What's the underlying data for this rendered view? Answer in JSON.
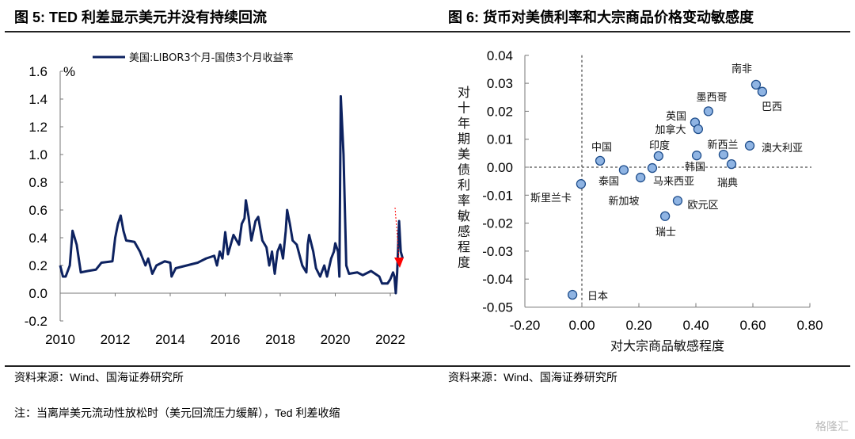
{
  "left": {
    "title": "图 5:  TED 利差显示美元并没有持续回流",
    "source": "资料来源：Wind、国海证券研究所",
    "note": "注：当离岸美元流动性放松时（美元回流压力缓解），Ted 利差收缩"
  },
  "right": {
    "title": "图 6:  货币对美债利率和大宗商品价格变动敏感度",
    "source": "资料来源：Wind、国海证券研究所"
  },
  "watermark": "格隆汇",
  "chart_data": [
    {
      "type": "line",
      "title": "TED 利差显示美元并没有持续回流",
      "ylabel": "%",
      "ylim": [
        -0.2,
        1.6
      ],
      "yticks": [
        "1.6",
        "1.4",
        "1.2",
        "1.0",
        "0.8",
        "0.6",
        "0.4",
        "0.2",
        "0.0",
        "-0.2"
      ],
      "ytick_values": [
        1.6,
        1.4,
        1.2,
        1.0,
        0.8,
        0.6,
        0.4,
        0.2,
        0.0,
        -0.2
      ],
      "xticks": [
        "2010",
        "2012",
        "2014",
        "2016",
        "2018",
        "2020",
        "2022"
      ],
      "xtick_values": [
        2010,
        2012,
        2014,
        2016,
        2018,
        2020,
        2022
      ],
      "legend": "美国:LIBOR3个月-国债3个月收益率",
      "series_color": "#0d2260",
      "annotation_color": "#ff0000",
      "x": [
        2010.0,
        2010.1,
        2010.2,
        2010.35,
        2010.45,
        2010.6,
        2010.75,
        2011.0,
        2011.3,
        2011.5,
        2011.9,
        2012.0,
        2012.1,
        2012.2,
        2012.3,
        2012.4,
        2012.7,
        2012.9,
        2013.1,
        2013.2,
        2013.35,
        2013.5,
        2013.8,
        2014.0,
        2014.05,
        2014.2,
        2014.6,
        2015.0,
        2015.3,
        2015.6,
        2015.7,
        2015.8,
        2015.9,
        2016.0,
        2016.1,
        2016.3,
        2016.5,
        2016.6,
        2016.7,
        2016.75,
        2016.85,
        2016.95,
        2017.1,
        2017.2,
        2017.35,
        2017.5,
        2017.6,
        2017.7,
        2017.8,
        2017.9,
        2018.0,
        2018.1,
        2018.2,
        2018.25,
        2018.35,
        2018.45,
        2018.6,
        2018.8,
        2018.95,
        2019.0,
        2019.05,
        2019.2,
        2019.3,
        2019.45,
        2019.6,
        2019.7,
        2019.85,
        2019.95,
        2020.0,
        2020.1,
        2020.15,
        2020.2,
        2020.3,
        2020.4,
        2020.5,
        2020.8,
        2021.0,
        2021.3,
        2021.6,
        2021.7,
        2021.9,
        2022.0,
        2022.1,
        2022.15,
        2022.2,
        2022.25,
        2022.32,
        2022.38,
        2022.45
      ],
      "y": [
        0.2,
        0.12,
        0.12,
        0.2,
        0.45,
        0.35,
        0.15,
        0.16,
        0.17,
        0.22,
        0.23,
        0.4,
        0.5,
        0.56,
        0.45,
        0.38,
        0.37,
        0.3,
        0.2,
        0.25,
        0.14,
        0.2,
        0.23,
        0.22,
        0.12,
        0.18,
        0.2,
        0.22,
        0.25,
        0.27,
        0.2,
        0.3,
        0.25,
        0.44,
        0.28,
        0.42,
        0.35,
        0.5,
        0.54,
        0.67,
        0.55,
        0.38,
        0.52,
        0.55,
        0.38,
        0.33,
        0.2,
        0.3,
        0.14,
        0.3,
        0.35,
        0.25,
        0.45,
        0.6,
        0.5,
        0.38,
        0.35,
        0.2,
        0.15,
        0.35,
        0.42,
        0.3,
        0.18,
        0.12,
        0.2,
        0.12,
        0.25,
        0.3,
        0.36,
        0.3,
        0.12,
        1.42,
        1.0,
        0.2,
        0.14,
        0.15,
        0.13,
        0.16,
        0.12,
        0.07,
        0.07,
        0.1,
        0.15,
        0.12,
        0.0,
        0.15,
        0.52,
        0.3,
        0.25
      ]
    },
    {
      "type": "scatter",
      "title": "货币对美债利率和大宗商品价格变动敏感度",
      "xlabel": "对大宗商品敏感程度",
      "ylabel": "对十年期美债利率敏感程度",
      "xlim": [
        -0.2,
        0.8
      ],
      "ylim": [
        -0.05,
        0.04
      ],
      "xticks": [
        "-0.20",
        "0.00",
        "0.20",
        "0.40",
        "0.60",
        "0.80"
      ],
      "xtick_values": [
        -0.2,
        0,
        0.2,
        0.4,
        0.6,
        0.8
      ],
      "yticks": [
        "0.04",
        "0.03",
        "0.02",
        "0.01",
        "0.00",
        "-0.01",
        "-0.02",
        "-0.03",
        "-0.04",
        "-0.05"
      ],
      "ytick_values": [
        0.04,
        0.03,
        0.02,
        0.01,
        0,
        -0.01,
        -0.02,
        -0.03,
        -0.04,
        -0.05
      ],
      "point_color": "#8fb4e3",
      "point_edge": "#1f4e8c",
      "points": [
        {
          "label": "南非",
          "x": 0.611,
          "y": 0.0295
        },
        {
          "label": "巴西",
          "x": 0.633,
          "y": 0.027
        },
        {
          "label": "墨西哥",
          "x": 0.444,
          "y": 0.02
        },
        {
          "label": "英国",
          "x": 0.397,
          "y": 0.016
        },
        {
          "label": "加拿大",
          "x": 0.408,
          "y": 0.0136
        },
        {
          "label": "澳大利亚",
          "x": 0.589,
          "y": 0.0077
        },
        {
          "label": "新西兰",
          "x": 0.497,
          "y": 0.0045
        },
        {
          "label": "韩国",
          "x": 0.403,
          "y": 0.0042
        },
        {
          "label": "瑞典",
          "x": 0.525,
          "y": 0.0011
        },
        {
          "label": "印度",
          "x": 0.269,
          "y": 0.004
        },
        {
          "label": "中国",
          "x": 0.064,
          "y": 0.0023
        },
        {
          "label": "马来西亚",
          "x": 0.247,
          "y": -0.0003
        },
        {
          "label": "泰国",
          "x": 0.147,
          "y": -0.001
        },
        {
          "label": "新加坡",
          "x": 0.206,
          "y": -0.0037
        },
        {
          "label": "斯里兰卡",
          "x": -0.003,
          "y": -0.006
        },
        {
          "label": "欧元区",
          "x": 0.336,
          "y": -0.012
        },
        {
          "label": "瑞士",
          "x": 0.292,
          "y": -0.0175
        },
        {
          "label": "日本",
          "x": -0.033,
          "y": -0.0456
        }
      ]
    }
  ]
}
